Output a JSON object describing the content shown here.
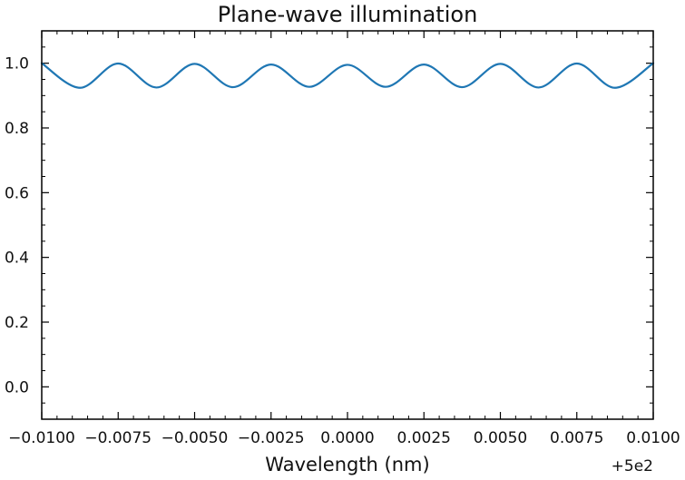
{
  "chart_data": {
    "type": "line",
    "title": "Plane-wave illumination",
    "xlabel": "Wavelength (nm)",
    "ylabel": "",
    "x_offset_label": "+5e2",
    "xlim": [
      499.99,
      500.01
    ],
    "ylim": [
      -0.1,
      1.1
    ],
    "xticks": [
      499.99,
      499.9925,
      499.995,
      499.9975,
      500.0,
      500.0025,
      500.005,
      500.0075,
      500.01
    ],
    "xtick_labels": [
      "−0.0100",
      "−0.0075",
      "−0.0050",
      "−0.0025",
      "0.0000",
      "0.0025",
      "0.0050",
      "0.0075",
      "0.0100"
    ],
    "yticks": [
      0.0,
      0.2,
      0.4,
      0.6,
      0.8,
      1.0
    ],
    "ytick_labels": [
      "0.0",
      "0.2",
      "0.4",
      "0.6",
      "0.8",
      "1.0"
    ],
    "grid": false,
    "legend": "none",
    "series": [
      {
        "color": "#1f77b4",
        "x": [
          499.99,
          499.99125,
          499.9925,
          499.99375,
          499.995,
          499.99625,
          499.9975,
          499.99875,
          500.0,
          500.00125,
          500.0025,
          500.00375,
          500.005,
          500.00625,
          500.0075,
          500.00875,
          500.01
        ],
        "y": [
          1.0,
          0.924,
          0.999,
          0.925,
          0.998,
          0.926,
          0.996,
          0.927,
          0.995,
          0.927,
          0.996,
          0.926,
          0.998,
          0.925,
          0.999,
          0.924,
          1.0
        ]
      }
    ]
  }
}
